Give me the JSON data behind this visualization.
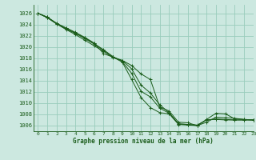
{
  "title": "Graphe pression niveau de la mer (hPa)",
  "background_color": "#cce8e0",
  "grid_color": "#99ccbb",
  "line_color": "#1a5c1a",
  "xlim": [
    -0.5,
    23
  ],
  "ylim": [
    1005.0,
    1027.5
  ],
  "yticks": [
    1006,
    1008,
    1010,
    1012,
    1014,
    1016,
    1018,
    1020,
    1022,
    1024,
    1026
  ],
  "xticks": [
    0,
    1,
    2,
    3,
    4,
    5,
    6,
    7,
    8,
    9,
    10,
    11,
    12,
    13,
    14,
    15,
    16,
    17,
    18,
    19,
    20,
    21,
    22,
    23
  ],
  "series": [
    [
      1026,
      1025.2,
      1024.1,
      1023.2,
      1022.4,
      1021.5,
      1020.5,
      1019.4,
      1018.2,
      1017.3,
      1014.2,
      1011.0,
      1009.2,
      1008.3,
      1008.1,
      1006.2,
      1006.1,
      1006.0,
      1007.0,
      1007.2,
      1007.1,
      1007.0,
      1007.0,
      1007.0
    ],
    [
      1026,
      1025.3,
      1024.2,
      1023.3,
      1022.5,
      1021.6,
      1020.6,
      1019.5,
      1018.3,
      1017.4,
      1015.3,
      1012.1,
      1011.1,
      1009.1,
      1008.2,
      1006.3,
      1006.2,
      1006.1,
      1007.0,
      1007.1,
      1007.0,
      1007.0,
      1007.0,
      1007.0
    ],
    [
      1026,
      1025.3,
      1024.2,
      1023.4,
      1022.6,
      1021.7,
      1020.7,
      1018.8,
      1018.2,
      1017.6,
      1016.1,
      1013.2,
      1011.8,
      1009.7,
      1008.3,
      1006.3,
      1006.2,
      1006.0,
      1006.6,
      1007.5,
      1007.4,
      1007.3,
      1007.1,
      1007.0
    ],
    [
      1026,
      1025.2,
      1024.1,
      1023.1,
      1022.2,
      1021.2,
      1020.2,
      1019.2,
      1018.1,
      1017.6,
      1016.7,
      1015.2,
      1014.2,
      1009.3,
      1008.6,
      1006.6,
      1006.5,
      1006.0,
      1007.1,
      1008.2,
      1008.1,
      1007.2,
      1007.1,
      1007.0
    ]
  ]
}
